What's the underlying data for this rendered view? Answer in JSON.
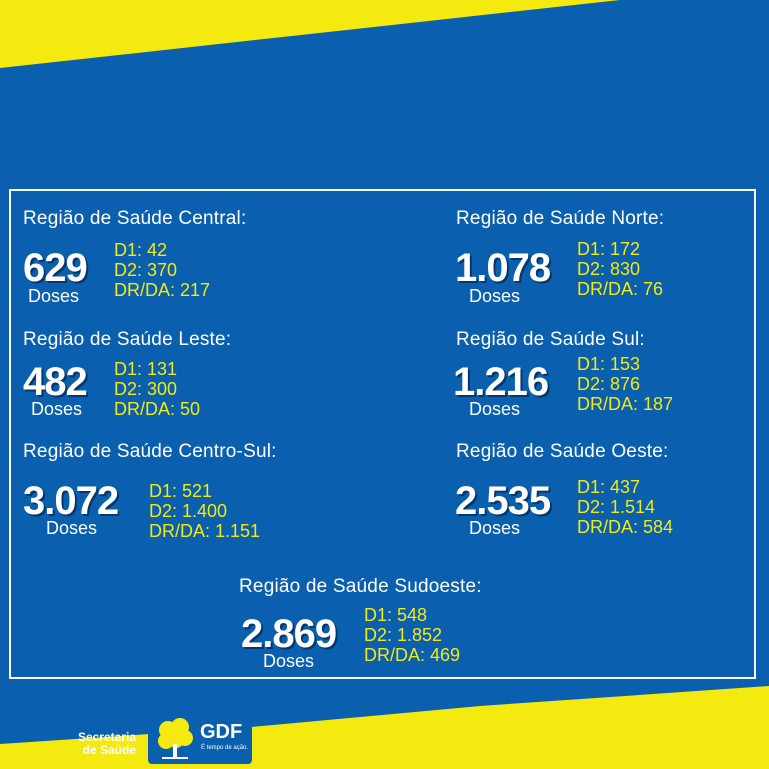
{
  "colors": {
    "background": "#0a5fae",
    "accent": "#f4ea10",
    "text": "#ffffff",
    "shadow": "#06376b"
  },
  "regions": [
    {
      "title": "Região de Saúde Central:",
      "total": "629",
      "unit": "Doses",
      "d1": "D1: 42",
      "d2": "D2: 370",
      "drda": "DR/DA: 217"
    },
    {
      "title": "Região de Saúde Norte:",
      "total": "1.078",
      "unit": "Doses",
      "d1": "D1: 172",
      "d2": "D2: 830",
      "drda": "DR/DA: 76"
    },
    {
      "title": "Região de Saúde Leste:",
      "total": "482",
      "unit": "Doses",
      "d1": "D1: 131",
      "d2": "D2: 300",
      "drda": "DR/DA: 50"
    },
    {
      "title": "Região de Saúde Sul:",
      "total": "1.216",
      "unit": "Doses",
      "d1": "D1: 153",
      "d2": "D2: 876",
      "drda": "DR/DA: 187"
    },
    {
      "title": "Região de Saúde Centro-Sul:",
      "total": "3.072",
      "unit": "Doses",
      "d1": "D1: 521",
      "d2": "D2: 1.400",
      "drda": "DR/DA: 1.151"
    },
    {
      "title": "Região de Saúde Oeste:",
      "total": "2.535",
      "unit": "Doses",
      "d1": "D1: 437",
      "d2": "D2: 1.514",
      "drda": "DR/DA: 584"
    },
    {
      "title": "Região de Saúde Sudoeste:",
      "total": "2.869",
      "unit": "Doses",
      "d1": "D1: 548",
      "d2": "D2: 1.852",
      "drda": "DR/DA: 469"
    }
  ],
  "footer": {
    "secretaria_line1": "Secretaria",
    "secretaria_line2": "de Saúde",
    "gdf": "GDF",
    "slogan": "É tempo de ação.",
    "tree_icon": "ipe-tree-icon"
  }
}
